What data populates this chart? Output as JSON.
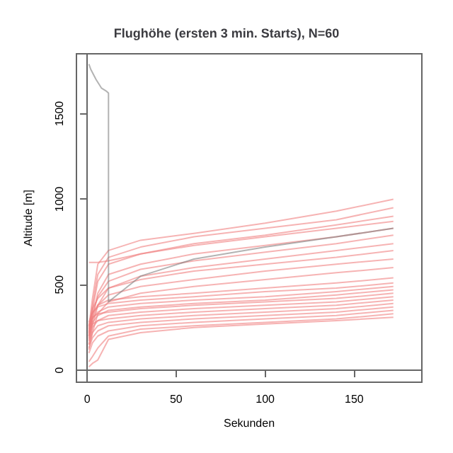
{
  "chart_data": {
    "type": "line",
    "title": "Flughöhe (ersten 3 min. Starts), N=60",
    "xlabel": "Sekunden",
    "ylabel": "Altitude [m]",
    "x": [
      1,
      3,
      6,
      12,
      30,
      60,
      100,
      140,
      172
    ],
    "xlim": [
      -6,
      188
    ],
    "xticks": [
      0,
      50,
      100,
      150
    ],
    "ylim": [
      -70,
      1850
    ],
    "yticks": [
      0,
      500,
      1000,
      1500
    ],
    "series": [
      {
        "color": "#f08080",
        "values": [
          250,
          420,
          620,
          700,
          760,
          800,
          860,
          930,
          1000
        ]
      },
      {
        "color": "#f08080",
        "values": [
          220,
          380,
          560,
          660,
          720,
          780,
          830,
          880,
          950
        ]
      },
      {
        "color": "#f08080",
        "values": [
          200,
          350,
          520,
          620,
          680,
          740,
          790,
          850,
          900
        ]
      },
      {
        "color": "#f08080",
        "values": [
          630,
          630,
          630,
          640,
          680,
          730,
          780,
          830,
          870
        ]
      },
      {
        "color": "#f08080",
        "values": [
          180,
          300,
          450,
          560,
          620,
          680,
          730,
          780,
          830
        ]
      },
      {
        "color": "#f08080",
        "values": [
          230,
          330,
          430,
          520,
          590,
          640,
          690,
          740,
          790
        ]
      },
      {
        "color": "#f08080",
        "values": [
          150,
          260,
          380,
          480,
          550,
          600,
          650,
          700,
          740
        ]
      },
      {
        "color": "#f08080",
        "values": [
          260,
          360,
          420,
          480,
          530,
          580,
          620,
          660,
          700
        ]
      },
      {
        "color": "#f08080",
        "values": [
          200,
          300,
          380,
          440,
          490,
          530,
          580,
          620,
          650
        ]
      },
      {
        "color": "#f08080",
        "values": [
          120,
          220,
          330,
          400,
          450,
          490,
          530,
          570,
          600
        ]
      },
      {
        "color": "#f08080",
        "values": [
          240,
          330,
          380,
          410,
          430,
          450,
          480,
          510,
          540
        ]
      },
      {
        "color": "#f08080",
        "values": [
          280,
          340,
          370,
          390,
          410,
          430,
          460,
          480,
          510
        ]
      },
      {
        "color": "#f08080",
        "values": [
          210,
          300,
          340,
          370,
          390,
          410,
          430,
          460,
          490
        ]
      },
      {
        "color": "#f08080",
        "values": [
          190,
          280,
          320,
          350,
          370,
          390,
          410,
          440,
          470
        ]
      },
      {
        "color": "#f08080",
        "values": [
          260,
          310,
          330,
          340,
          360,
          380,
          400,
          420,
          450
        ]
      },
      {
        "color": "#f08080",
        "values": [
          170,
          250,
          290,
          320,
          340,
          360,
          380,
          400,
          430
        ]
      },
      {
        "color": "#f08080",
        "values": [
          220,
          270,
          290,
          300,
          320,
          340,
          360,
          380,
          410
        ]
      },
      {
        "color": "#f08080",
        "values": [
          150,
          220,
          260,
          280,
          300,
          320,
          340,
          360,
          390
        ]
      },
      {
        "color": "#f08080",
        "values": [
          130,
          190,
          230,
          260,
          280,
          300,
          320,
          340,
          370
        ]
      },
      {
        "color": "#f08080",
        "values": [
          100,
          160,
          200,
          230,
          260,
          280,
          300,
          320,
          350
        ]
      },
      {
        "color": "#f08080",
        "values": [
          50,
          80,
          130,
          200,
          240,
          260,
          280,
          300,
          330
        ]
      },
      {
        "color": "#f08080",
        "values": [
          20,
          40,
          60,
          180,
          220,
          250,
          270,
          290,
          310
        ]
      },
      {
        "color": "#808080",
        "x": [
          1,
          2,
          5,
          8,
          11,
          12,
          12,
          30,
          60,
          100,
          140,
          172
        ],
        "values": [
          1790,
          1760,
          1700,
          1650,
          1630,
          1620,
          400,
          550,
          650,
          720,
          780,
          830
        ]
      }
    ]
  }
}
